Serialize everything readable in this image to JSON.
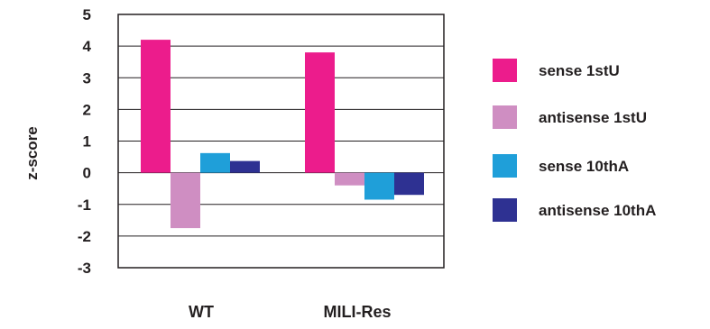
{
  "chart_data": {
    "type": "bar",
    "title": "",
    "xlabel": "",
    "ylabel": "z-score",
    "ylim": [
      -3,
      5
    ],
    "yticks": [
      5,
      4,
      3,
      2,
      1,
      0,
      -1,
      -2,
      -3
    ],
    "grid": true,
    "legend_position": "right",
    "categories": [
      "WT",
      "MILI-Res"
    ],
    "series": [
      {
        "name": "sense 1stU",
        "color": "#ec1c8c",
        "values": [
          4.2,
          3.8
        ]
      },
      {
        "name": "antisense 1stU",
        "color": "#cf8ec2",
        "values": [
          -1.75,
          -0.4
        ]
      },
      {
        "name": "sense 10thA",
        "color": "#1f9fd9",
        "values": [
          0.62,
          -0.85
        ]
      },
      {
        "name": "antisense 10thA",
        "color": "#2e3192",
        "values": [
          0.37,
          -0.7
        ]
      }
    ]
  }
}
